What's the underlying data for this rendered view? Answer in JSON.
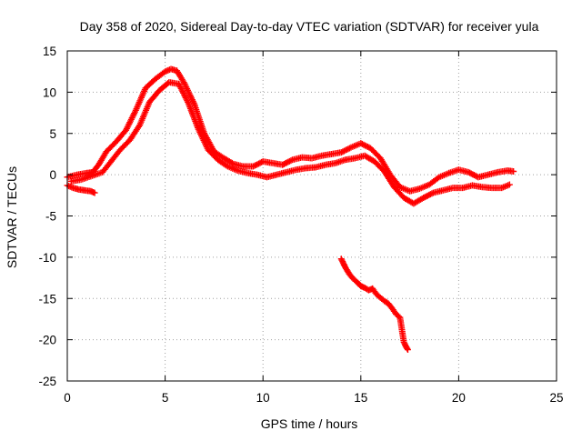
{
  "chart_data": {
    "type": "scatter",
    "title": "Day 358 of 2020, Sidereal Day-to-day VTEC variation (SDTVAR) for receiver yula",
    "xlabel": "GPS time / hours",
    "ylabel": "SDTVAR / TECUs",
    "xlim": [
      0,
      25
    ],
    "ylim": [
      -25,
      15
    ],
    "xticks": [
      0,
      5,
      10,
      15,
      20,
      25
    ],
    "yticks": [
      15,
      10,
      5,
      0,
      -5,
      -10,
      -15,
      -20,
      -25
    ],
    "grid": true,
    "marker": "plus",
    "series_color": "#ff0000",
    "series": [
      {
        "name": "main-band-upper",
        "x": [
          0.0,
          0.5,
          1.0,
          1.3,
          1.6,
          2.0,
          2.5,
          3.0,
          3.5,
          4.0,
          4.5,
          5.0,
          5.3,
          5.6,
          6.0,
          6.5,
          7.0,
          7.5,
          8.0,
          8.5,
          9.0,
          9.5,
          10.0,
          10.5,
          11.0,
          11.5,
          12.0,
          12.5,
          13.0,
          13.5,
          14.0,
          14.5,
          15.0,
          15.5,
          16.0,
          16.5,
          17.0,
          17.5,
          18.0,
          18.5,
          19.0,
          19.5,
          20.0,
          20.5,
          21.0,
          21.5,
          22.0,
          22.5,
          22.8
        ],
        "y": [
          -0.3,
          0.0,
          0.2,
          0.3,
          1.2,
          2.8,
          4.0,
          5.4,
          7.8,
          10.5,
          11.6,
          12.5,
          12.8,
          12.6,
          11.0,
          8.5,
          5.0,
          2.8,
          2.0,
          1.3,
          1.0,
          1.0,
          1.6,
          1.4,
          1.2,
          1.8,
          2.1,
          2.0,
          2.3,
          2.5,
          2.7,
          3.3,
          3.8,
          3.2,
          2.0,
          0.0,
          -1.5,
          -2.0,
          -1.7,
          -1.2,
          -0.3,
          0.2,
          0.6,
          0.3,
          -0.3,
          0.0,
          0.3,
          0.5,
          0.4
        ]
      },
      {
        "name": "main-band-lower",
        "x": [
          0.2,
          0.7,
          1.2,
          1.8,
          2.2,
          2.7,
          3.2,
          3.7,
          4.2,
          4.7,
          5.2,
          5.7,
          6.2,
          6.7,
          7.2,
          7.7,
          8.2,
          8.7,
          9.2,
          9.7,
          10.2,
          10.7,
          11.2,
          11.7,
          12.2,
          12.7,
          13.2,
          13.7,
          14.2,
          14.7,
          15.2,
          15.7,
          16.2,
          16.7,
          17.2,
          17.7,
          18.2,
          18.7,
          19.2,
          19.7,
          20.2,
          20.7,
          21.2,
          21.7,
          22.2,
          22.6
        ],
        "y": [
          -0.8,
          -0.6,
          -0.2,
          0.3,
          1.5,
          3.0,
          4.2,
          6.0,
          8.8,
          10.2,
          11.2,
          11.0,
          8.6,
          5.5,
          3.0,
          1.8,
          1.0,
          0.5,
          0.2,
          0.0,
          -0.3,
          0.0,
          0.3,
          0.6,
          0.8,
          0.9,
          1.2,
          1.4,
          1.8,
          2.0,
          2.3,
          1.6,
          0.4,
          -1.5,
          -2.8,
          -3.5,
          -2.8,
          -2.2,
          -1.9,
          -1.6,
          -1.6,
          -1.3,
          -1.5,
          -1.6,
          -1.6,
          -1.2
        ]
      },
      {
        "name": "offset-short-segment",
        "x": [
          0.0,
          0.3,
          0.6,
          0.9,
          1.2,
          1.4
        ],
        "y": [
          -1.3,
          -1.6,
          -1.8,
          -1.9,
          -2.0,
          -2.2
        ]
      },
      {
        "name": "descending-segment",
        "x": [
          14.0,
          14.2,
          14.4,
          14.6,
          14.8,
          15.0,
          15.2,
          15.4,
          15.6,
          15.8,
          16.0,
          16.2,
          16.4,
          16.6,
          16.8,
          17.0,
          17.2,
          17.3,
          17.4
        ],
        "y": [
          -10.2,
          -11.2,
          -12.0,
          -12.6,
          -13.0,
          -13.5,
          -13.7,
          -14.0,
          -13.8,
          -14.5,
          -14.9,
          -15.3,
          -15.6,
          -16.2,
          -16.9,
          -17.3,
          -20.3,
          -20.8,
          -21.2
        ]
      }
    ]
  }
}
